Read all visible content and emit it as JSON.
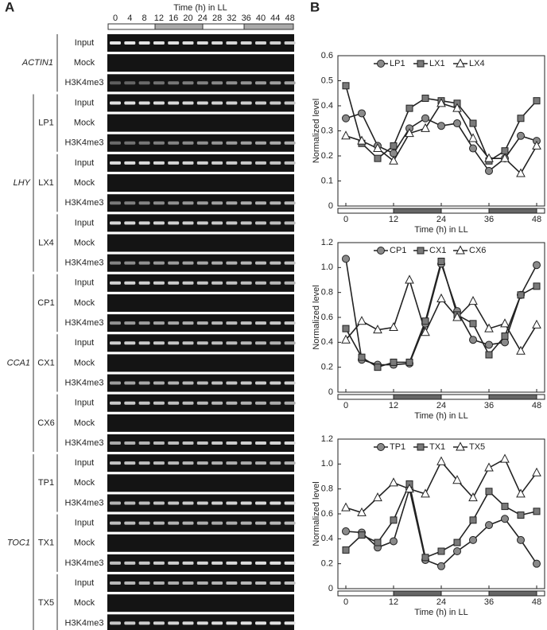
{
  "panel_a": {
    "label": "A",
    "time_title": "Time (h) in LL",
    "times": [
      0,
      4,
      8,
      12,
      16,
      20,
      24,
      28,
      32,
      36,
      40,
      44,
      48
    ],
    "genes": [
      {
        "name": "ACTIN1",
        "regions": [
          {
            "rows": [
              "Input",
              "Mock",
              "H3K4me3"
            ]
          }
        ]
      },
      {
        "name": "LHY",
        "regions": [
          {
            "name": "LP1",
            "rows": [
              "Input",
              "Mock",
              "H3K4me3"
            ]
          },
          {
            "name": "LX1",
            "rows": [
              "Input",
              "Mock",
              "H3K4me3"
            ]
          },
          {
            "name": "LX4",
            "rows": [
              "Input",
              "Mock",
              "H3K4me3"
            ]
          }
        ]
      },
      {
        "name": "CCA1",
        "regions": [
          {
            "name": "CP1",
            "rows": [
              "Input",
              "Mock",
              "H3K4me3"
            ]
          },
          {
            "name": "CX1",
            "rows": [
              "Input",
              "Mock",
              "H3K4me3"
            ]
          },
          {
            "name": "CX6",
            "rows": [
              "Input",
              "Mock",
              "H3K4me3"
            ]
          }
        ]
      },
      {
        "name": "TOC1",
        "regions": [
          {
            "name": "TP1",
            "rows": [
              "Input",
              "Mock",
              "H3K4me3"
            ]
          },
          {
            "name": "TX1",
            "rows": [
              "Input",
              "Mock",
              "H3K4me3"
            ]
          },
          {
            "name": "TX5",
            "rows": [
              "Input",
              "Mock",
              "H3K4me3"
            ]
          }
        ]
      }
    ]
  },
  "panel_b": {
    "label": "B"
  },
  "chart_data": [
    {
      "type": "line",
      "x_label": "Time (h) in LL",
      "y_label": "Normalized level",
      "line_color": "#222",
      "legend": "top",
      "x": [
        0,
        4,
        8,
        12,
        16,
        20,
        24,
        28,
        32,
        36,
        40,
        44,
        48
      ],
      "xlim": [
        -2,
        50
      ],
      "xticks": [
        0,
        12,
        24,
        36,
        48
      ],
      "ylim": [
        0,
        0.6
      ],
      "yticks": [
        0,
        0.1,
        0.2,
        0.3,
        0.4,
        0.5,
        0.6
      ],
      "series": [
        {
          "name": "LP1",
          "color": "#8a8a8a",
          "marker": "circle",
          "values": [
            0.35,
            0.37,
            0.24,
            0.21,
            0.31,
            0.35,
            0.32,
            0.33,
            0.23,
            0.14,
            0.19,
            0.28,
            0.26
          ]
        },
        {
          "name": "LX1",
          "color": "#7a7a7a",
          "marker": "square",
          "values": [
            0.48,
            0.25,
            0.19,
            0.24,
            0.39,
            0.43,
            0.42,
            0.41,
            0.33,
            0.18,
            0.22,
            0.35,
            0.42
          ]
        },
        {
          "name": "LX4",
          "color": "#ffffff",
          "marker": "triangle",
          "values": [
            0.28,
            0.26,
            0.23,
            0.18,
            0.29,
            0.31,
            0.41,
            0.39,
            0.27,
            0.19,
            0.19,
            0.13,
            0.24
          ]
        }
      ]
    },
    {
      "type": "line",
      "x_label": "Time (h) in LL",
      "y_label": "Normalized level",
      "line_color": "#222",
      "legend": "top",
      "x": [
        0,
        4,
        8,
        12,
        16,
        20,
        24,
        28,
        32,
        36,
        40,
        44,
        48
      ],
      "xlim": [
        -2,
        50
      ],
      "xticks": [
        0,
        12,
        24,
        36,
        48
      ],
      "ylim": [
        0,
        1.2
      ],
      "yticks": [
        0,
        0.2,
        0.4,
        0.6,
        0.8,
        {
          "value": 1,
          "label": "1.0"
        },
        1.2
      ],
      "series": [
        {
          "name": "CP1",
          "color": "#8a8a8a",
          "marker": "circle",
          "values": [
            1.07,
            0.26,
            0.22,
            0.22,
            0.23,
            0.55,
            1.03,
            0.65,
            0.42,
            0.38,
            0.4,
            0.78,
            1.02
          ]
        },
        {
          "name": "CX1",
          "color": "#7a7a7a",
          "marker": "square",
          "values": [
            0.51,
            0.28,
            0.2,
            0.24,
            0.24,
            0.57,
            1.05,
            0.62,
            0.55,
            0.3,
            0.45,
            0.78,
            0.85
          ]
        },
        {
          "name": "CX6",
          "color": "#ffffff",
          "marker": "triangle",
          "values": [
            0.42,
            0.57,
            0.5,
            0.52,
            0.9,
            0.48,
            0.75,
            0.6,
            0.73,
            0.51,
            0.55,
            0.33,
            0.54
          ]
        }
      ]
    },
    {
      "type": "line",
      "x_label": "Time (h) in LL",
      "y_label": "Normalized level",
      "line_color": "#222",
      "legend": "top",
      "x": [
        0,
        4,
        8,
        12,
        16,
        20,
        24,
        28,
        32,
        36,
        40,
        44,
        48
      ],
      "xlim": [
        -2,
        50
      ],
      "xticks": [
        0,
        12,
        24,
        36,
        48
      ],
      "ylim": [
        0,
        1.2
      ],
      "yticks": [
        0,
        0.2,
        0.4,
        0.6,
        0.8,
        {
          "value": 1,
          "label": "1.0"
        },
        1.2
      ],
      "series": [
        {
          "name": "TP1",
          "color": "#8a8a8a",
          "marker": "circle",
          "values": [
            0.46,
            0.45,
            0.33,
            0.38,
            0.8,
            0.23,
            0.18,
            0.3,
            0.39,
            0.51,
            0.56,
            0.39,
            0.2
          ]
        },
        {
          "name": "TX1",
          "color": "#7a7a7a",
          "marker": "square",
          "values": [
            0.31,
            0.43,
            0.37,
            0.55,
            0.84,
            0.25,
            0.3,
            0.37,
            0.55,
            0.78,
            0.66,
            0.59,
            0.62
          ]
        },
        {
          "name": "TX5",
          "color": "#ffffff",
          "marker": "triangle",
          "values": [
            0.65,
            0.61,
            0.73,
            0.85,
            0.8,
            0.76,
            1.02,
            0.87,
            0.73,
            0.97,
            1.04,
            0.76,
            0.93
          ]
        }
      ]
    }
  ]
}
